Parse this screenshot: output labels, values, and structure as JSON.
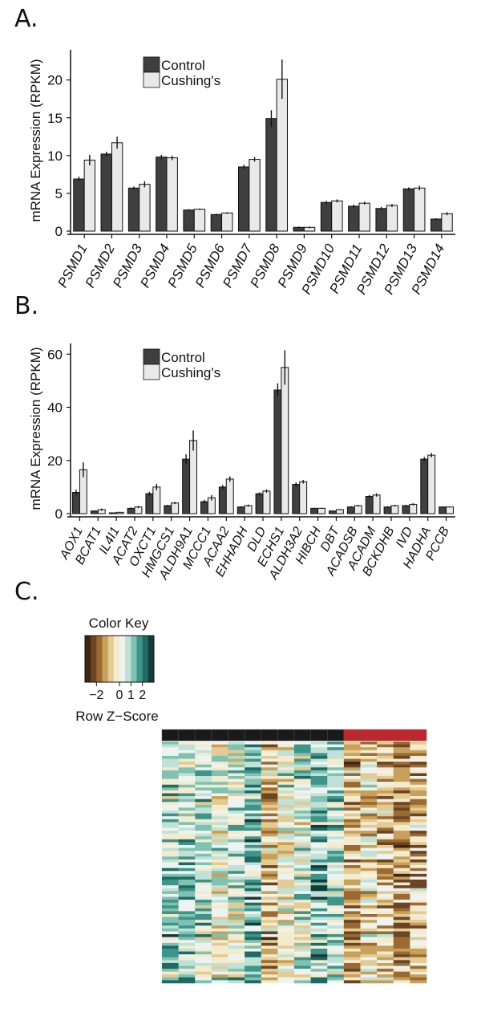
{
  "panels": {
    "a": "A.",
    "b": "B.",
    "c": "C."
  },
  "colors": {
    "control": "#3f3f3f",
    "cushings": "#e9e9e9",
    "group_control_bar": "#1a1a1a",
    "group_cushings_bar": "#c0272d"
  },
  "chart_data": [
    {
      "type": "bar",
      "ylabel": "mRNA Expression (RPKM)",
      "xlabel": "",
      "ylim": [
        0,
        24
      ],
      "yticks": [
        0,
        5,
        10,
        15,
        20
      ],
      "grid": false,
      "legend_position": "top-left",
      "categories": [
        "PSMD1",
        "PSMD2",
        "PSMD3",
        "PSMD4",
        "PSMD5",
        "PSMD6",
        "PSMD7",
        "PSMD8",
        "PSMD9",
        "PSMD10",
        "PSMD11",
        "PSMD12",
        "PSMD13",
        "PSMD14"
      ],
      "series": [
        {
          "name": "Control",
          "values": [
            6.9,
            10.2,
            5.7,
            9.8,
            2.8,
            2.2,
            8.5,
            14.9,
            0.5,
            3.8,
            3.3,
            3.0,
            5.6,
            1.6
          ],
          "errors": [
            0.3,
            0.3,
            0.2,
            0.3,
            0.1,
            0.1,
            0.3,
            1.1,
            0.1,
            0.2,
            0.2,
            0.2,
            0.2,
            0.1
          ]
        },
        {
          "name": "Cushing's",
          "values": [
            9.4,
            11.7,
            6.2,
            9.7,
            2.9,
            2.4,
            9.5,
            20.1,
            0.5,
            4.0,
            3.7,
            3.4,
            5.7,
            2.3
          ],
          "errors": [
            0.7,
            0.8,
            0.4,
            0.3,
            0.1,
            0.1,
            0.3,
            2.6,
            0.1,
            0.2,
            0.2,
            0.2,
            0.3,
            0.2
          ]
        }
      ]
    },
    {
      "type": "bar",
      "ylabel": "mRNA Expression (RPKM)",
      "xlabel": "",
      "ylim": [
        0,
        64
      ],
      "yticks": [
        0,
        20,
        40,
        60
      ],
      "grid": false,
      "legend_position": "top-left",
      "categories": [
        "AOX1",
        "BCAT1",
        "IL4I1",
        "ACAT2",
        "OXCT1",
        "HMGCS1",
        "ALDH9A1",
        "MCCC1",
        "ACAA2",
        "EHHADH",
        "DLD",
        "ECHS1",
        "ALDH3A2",
        "HIBCH",
        "DBT",
        "ACADSB",
        "ACADM",
        "BCKDHB",
        "IVD",
        "HADHA",
        "PCCB"
      ],
      "series": [
        {
          "name": "Control",
          "values": [
            8.0,
            1.0,
            0.3,
            2.0,
            7.5,
            3.0,
            20.5,
            4.5,
            10.0,
            2.5,
            7.5,
            46.5,
            11.0,
            2.0,
            1.0,
            2.5,
            6.5,
            2.5,
            3.0,
            20.5,
            2.5
          ],
          "errors": [
            1.0,
            0.2,
            0.1,
            0.3,
            0.7,
            0.3,
            1.8,
            0.7,
            0.8,
            0.3,
            0.5,
            2.5,
            0.8,
            0.2,
            0.1,
            0.3,
            0.5,
            0.3,
            0.3,
            0.8,
            0.2
          ]
        },
        {
          "name": "Cushing's",
          "values": [
            16.5,
            1.5,
            0.5,
            2.5,
            10.0,
            4.0,
            27.5,
            6.0,
            13.0,
            3.0,
            8.5,
            55.0,
            12.0,
            2.0,
            1.5,
            3.0,
            7.0,
            3.0,
            3.5,
            22.0,
            2.5
          ],
          "errors": [
            2.8,
            0.4,
            0.1,
            0.4,
            1.2,
            0.4,
            3.8,
            1.0,
            1.0,
            0.4,
            0.6,
            6.5,
            0.7,
            0.2,
            0.2,
            0.3,
            0.6,
            0.3,
            0.4,
            0.8,
            0.2
          ]
        }
      ]
    },
    {
      "type": "heatmap",
      "color_key": {
        "title": "Color Key",
        "xlabel": "Row Z−Score",
        "ticks": [
          "−2",
          "0",
          "1",
          "2"
        ],
        "tick_values": [
          -2,
          0,
          1,
          2
        ],
        "range": [
          -3,
          3
        ],
        "colors": [
          "#3d2712",
          "#6b4423",
          "#9a6a32",
          "#c9a05a",
          "#e3cb93",
          "#f4ebcf",
          "#eef3ef",
          "#bfe1d7",
          "#80c2b2",
          "#3f948a",
          "#1f6a63",
          "#143b37"
        ]
      },
      "columns": 16,
      "rows": 84,
      "column_groups": [
        "control",
        "control",
        "control",
        "control",
        "control",
        "control",
        "control",
        "control",
        "control",
        "control",
        "control",
        "cushings",
        "cushings",
        "cushings",
        "cushings",
        "cushings"
      ],
      "column_means": [
        1.0,
        0.9,
        0.7,
        0.2,
        0.5,
        1.2,
        -1.0,
        0.0,
        0.6,
        1.3,
        0.8,
        -1.0,
        -0.4,
        -0.7,
        -1.2,
        -1.0
      ],
      "seed": 7
    }
  ]
}
